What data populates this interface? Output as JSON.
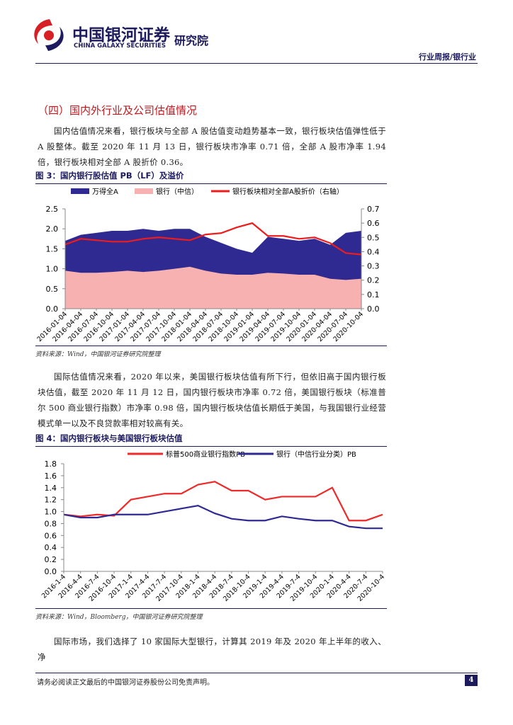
{
  "header": {
    "company": "中国银河证券",
    "company_en": "CHINA GALAXY SECURITIES",
    "institute": "研究院",
    "report_type": "行业周报/银行业"
  },
  "section_title": "（四）国内外行业及公司估值情况",
  "paragraphs": [
    "国内估值情况来看，银行板块与全部 A 股估值变动趋势基本一致，银行板块估值弹性低于 A 股整体。截至 2020 年 11 月 13 日，银行板块市净率 0.71 倍，全部 A 股市净率 1.94 倍，银行板块相对全部 A 股折价 0.36。",
    "国际估值情况来看，2020 年以来，美国银行板块估值有所下行，但依旧高于国内银行板块估值，截至 2020 年 11 月 12 日，国内银行板块市净率 0.72 倍，美国银行板块（标准普尔 500 商业银行指数）市净率 0.98 倍，国内银行板块估值长期低于美国，与我国银行业经营模式单一以及不良贷款率相对较高有关。",
    "国际市场，我们选择了 10 家国际大型银行，计算其 2019 年及 2020 年上半年的收入、净"
  ],
  "figures": [
    {
      "caption": "图 3：国内银行股估值 PB（LF）及溢价",
      "source": "资料来源：Wind，中国银河证券研究院整理"
    },
    {
      "caption": "图 4：国内银行板块与美国银行板块估值",
      "source": "资料来源：Wind，Bloomberg，中国银河证券研究院整理"
    }
  ],
  "chart_data": [
    {
      "type": "area",
      "categories": [
        "2016-01-04",
        "2016-04-04",
        "2016-07-04",
        "2016-10-04",
        "2017-01-04",
        "2017-04-04",
        "2017-07-04",
        "2017-10-04",
        "2018-01-04",
        "2018-04-04",
        "2018-07-04",
        "2018-10-04",
        "2019-01-04",
        "2019-04-04",
        "2019-07-04",
        "2019-10-04",
        "2020-01-04",
        "2020-04-04",
        "2020-07-04",
        "2020-10-04"
      ],
      "series": [
        {
          "name": "万得全A",
          "type": "area",
          "color": "#2f2a91",
          "values": [
            1.7,
            1.85,
            1.9,
            1.95,
            1.95,
            2.0,
            1.95,
            2.0,
            2.0,
            1.8,
            1.65,
            1.5,
            1.4,
            1.8,
            1.75,
            1.7,
            1.75,
            1.6,
            1.9,
            1.95
          ]
        },
        {
          "name": "银行（中信）",
          "type": "area",
          "color": "#f7b1b0",
          "values": [
            0.95,
            0.9,
            0.9,
            0.92,
            0.95,
            0.92,
            0.95,
            1.0,
            1.05,
            0.95,
            0.88,
            0.85,
            0.85,
            0.9,
            0.88,
            0.85,
            0.85,
            0.75,
            0.72,
            0.75
          ]
        },
        {
          "name": "银行板块相对全部A股折价（右轴）",
          "type": "line",
          "axis": "y2",
          "color": "#ee1c1c",
          "values": [
            0.45,
            0.49,
            0.48,
            0.47,
            0.47,
            0.49,
            0.5,
            0.49,
            0.48,
            0.52,
            0.53,
            0.57,
            0.6,
            0.51,
            0.51,
            0.49,
            0.5,
            0.46,
            0.39,
            0.38
          ]
        }
      ],
      "ylim": [
        0,
        2.5
      ],
      "yticks": [
        {
          "value": 0,
          "label": "0.0"
        },
        0.5,
        {
          "value": 1,
          "label": "1.0"
        },
        1.5,
        {
          "value": 2,
          "label": "2.0"
        },
        2.5
      ],
      "y2lim": [
        0,
        0.7
      ],
      "y2ticks": [
        {
          "value": 0,
          "label": "0.0"
        },
        0.1,
        0.2,
        0.3,
        0.4,
        0.5,
        0.6,
        0.7
      ],
      "grid": false
    },
    {
      "type": "line",
      "categories": [
        "2016-1-4",
        "2016-4-4",
        "2016-7-4",
        "2016-10-4",
        "2017-1-4",
        "2017-4-4",
        "2017-7-4",
        "2017-10-4",
        "2018-1-4",
        "2018-4-4",
        "2018-7-4",
        "2018-10-4",
        "2019-1-4",
        "2019-4-4",
        "2019-7-4",
        "2019-10-4",
        "2020-1-4",
        "2020-4-4",
        "2020-7-4",
        "2020-10-4"
      ],
      "series": [
        {
          "name": "标普500商业银行指数PB",
          "color": "#ee2a2a",
          "values": [
            0.95,
            0.92,
            0.95,
            0.93,
            1.2,
            1.25,
            1.3,
            1.3,
            1.45,
            1.5,
            1.35,
            1.35,
            1.2,
            1.25,
            1.25,
            1.25,
            1.4,
            0.85,
            0.85,
            0.95
          ]
        },
        {
          "name": "银行（中信行业分类）PB",
          "color": "#2f2a91",
          "values": [
            0.95,
            0.9,
            0.9,
            0.95,
            0.95,
            0.95,
            1.0,
            1.05,
            1.1,
            0.97,
            0.88,
            0.85,
            0.85,
            0.92,
            0.88,
            0.85,
            0.85,
            0.75,
            0.72,
            0.72
          ]
        }
      ],
      "ylim": [
        0,
        1.8
      ],
      "yticks": [
        {
          "value": 0,
          "label": "0.0"
        },
        0.2,
        0.4,
        0.6,
        0.8,
        {
          "value": 1,
          "label": "1.0"
        },
        1.2,
        1.4,
        1.6,
        1.8
      ],
      "grid": false
    }
  ],
  "footer": {
    "disclaimer": "请务必阅读正文最后的中国银河证券股份公司免责声明。",
    "page": "4"
  }
}
